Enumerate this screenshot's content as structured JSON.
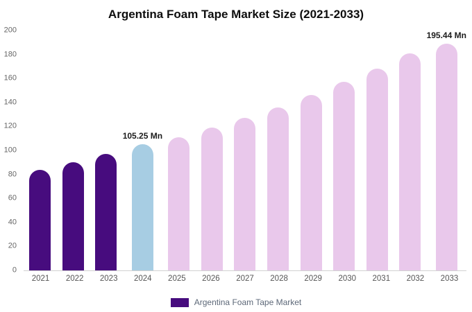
{
  "chart_data": {
    "type": "bar",
    "title": "Argentina Foam Tape Market Size (2021-2033)",
    "categories": [
      "2021",
      "2022",
      "2023",
      "2024",
      "2025",
      "2026",
      "2027",
      "2028",
      "2029",
      "2030",
      "2031",
      "2032",
      "2033"
    ],
    "values": [
      84,
      90,
      97,
      105.25,
      111,
      119,
      127,
      136,
      146,
      157,
      168,
      181,
      195.44
    ],
    "unit": "Mn",
    "ylim": [
      0,
      200
    ],
    "ytick_step": 20,
    "grid": false,
    "legend_position": "bottom",
    "bar_colors": [
      "#470c7e",
      "#470c7e",
      "#470c7e",
      "#a7cde3",
      "#e9c8eb",
      "#e9c8eb",
      "#e9c8eb",
      "#e9c8eb",
      "#e9c8eb",
      "#e9c8eb",
      "#e9c8eb",
      "#e9c8eb",
      "#e9c8eb"
    ],
    "annotations": [
      {
        "index": 3,
        "text": "105.25 Mn"
      },
      {
        "index": 12,
        "text": "195.44 Mn"
      }
    ],
    "legend": [
      {
        "label": "Argentina Foam Tape Market",
        "color": "#470c7e"
      }
    ]
  }
}
